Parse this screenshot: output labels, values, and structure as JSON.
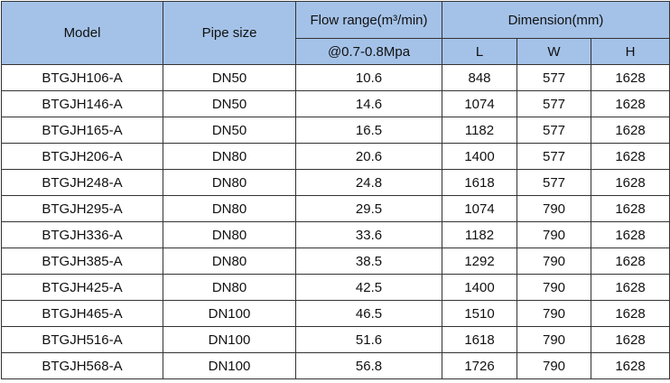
{
  "header": {
    "model": "Model",
    "pipe_size": "Pipe size",
    "flow_range": "Flow range(m³/min)",
    "pressure": "@0.7-0.8Mpa",
    "dimension": "Dimension(mm)",
    "l": "L",
    "w": "W",
    "h": "H"
  },
  "table": {
    "rows": [
      [
        "BTGJH106-A",
        "DN50",
        "10.6",
        "848",
        "577",
        "1628"
      ],
      [
        "BTGJH146-A",
        "DN50",
        "14.6",
        "1074",
        "577",
        "1628"
      ],
      [
        "BTGJH165-A",
        "DN50",
        "16.5",
        "1182",
        "577",
        "1628"
      ],
      [
        "BTGJH206-A",
        "DN80",
        "20.6",
        "1400",
        "577",
        "1628"
      ],
      [
        "BTGJH248-A",
        "DN80",
        "24.8",
        "1618",
        "577",
        "1628"
      ],
      [
        "BTGJH295-A",
        "DN80",
        "29.5",
        "1074",
        "790",
        "1628"
      ],
      [
        "BTGJH336-A",
        "DN80",
        "33.6",
        "1182",
        "790",
        "1628"
      ],
      [
        "BTGJH385-A",
        "DN80",
        "38.5",
        "1292",
        "790",
        "1628"
      ],
      [
        "BTGJH425-A",
        "DN80",
        "42.5",
        "1400",
        "790",
        "1628"
      ],
      [
        "BTGJH465-A",
        "DN100",
        "46.5",
        "1510",
        "790",
        "1628"
      ],
      [
        "BTGJH516-A",
        "DN100",
        "51.6",
        "1618",
        "790",
        "1628"
      ],
      [
        "BTGJH568-A",
        "DN100",
        "56.8",
        "1726",
        "790",
        "1628"
      ]
    ]
  }
}
